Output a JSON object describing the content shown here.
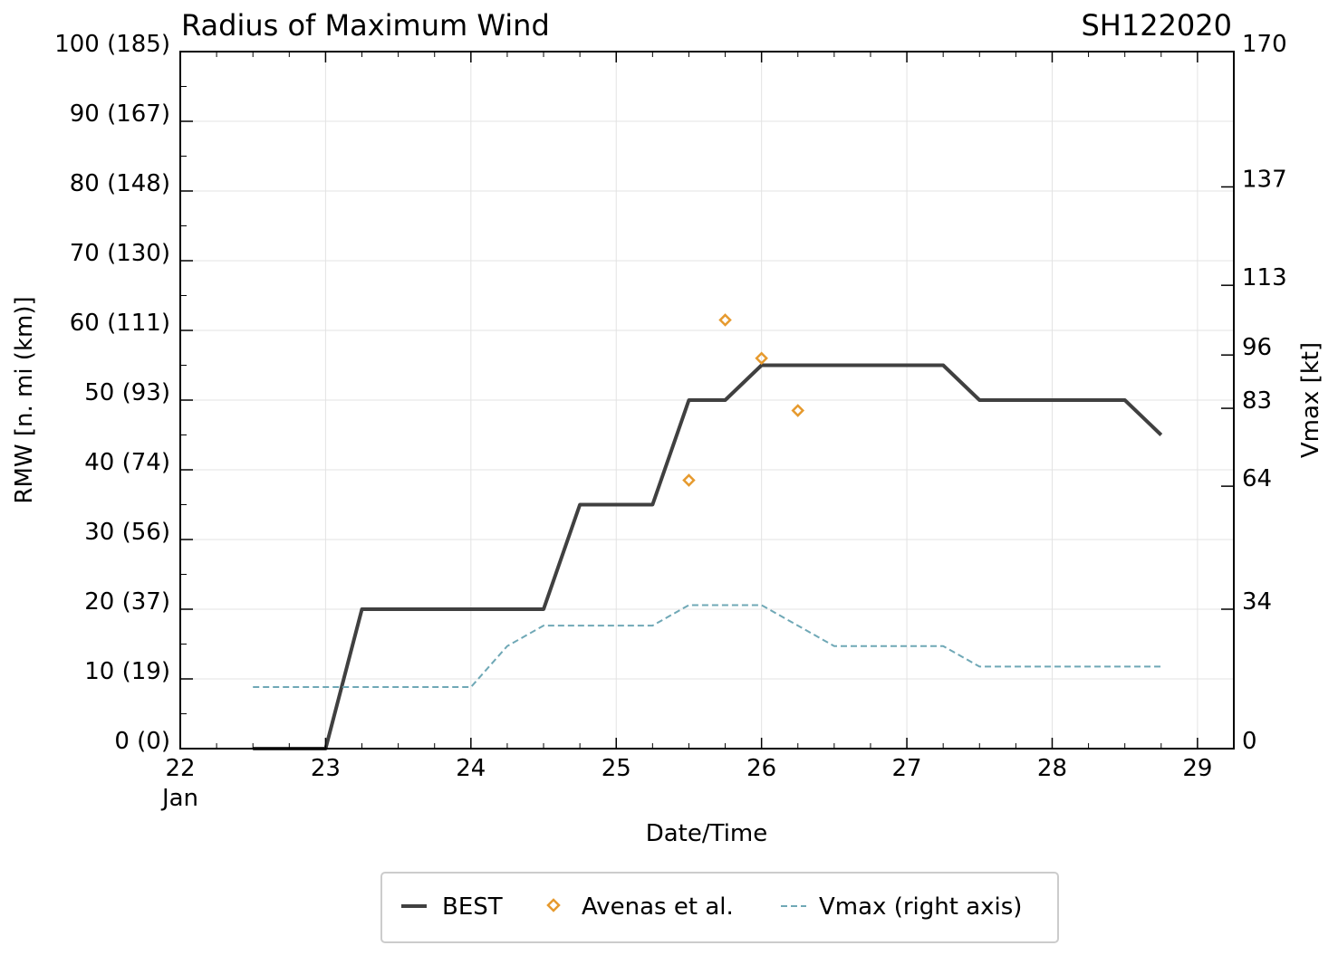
{
  "chart_data": {
    "type": "line",
    "title": "Radius of Maximum Wind",
    "storm_id": "SH122020",
    "xlabel": "Date/Time",
    "ylabel": "RMW [n. mi (km)]",
    "y2label": "Vmax [kt]",
    "xlim": [
      22,
      29.25
    ],
    "ylim": [
      0,
      100
    ],
    "x_ticks": [
      {
        "x": 22,
        "label": "22",
        "sub": "Jan"
      },
      {
        "x": 23,
        "label": "23",
        "sub": ""
      },
      {
        "x": 24,
        "label": "24",
        "sub": ""
      },
      {
        "x": 25,
        "label": "25",
        "sub": ""
      },
      {
        "x": 26,
        "label": "26",
        "sub": ""
      },
      {
        "x": 27,
        "label": "27",
        "sub": ""
      },
      {
        "x": 28,
        "label": "28",
        "sub": ""
      },
      {
        "x": 29,
        "label": "29",
        "sub": ""
      }
    ],
    "y_ticks": [
      {
        "y": 0,
        "label": "0 (0)"
      },
      {
        "y": 10,
        "label": "10 (19)"
      },
      {
        "y": 20,
        "label": "20 (37)"
      },
      {
        "y": 30,
        "label": "30 (56)"
      },
      {
        "y": 40,
        "label": "40 (74)"
      },
      {
        "y": 50,
        "label": "50 (93)"
      },
      {
        "y": 60,
        "label": "60 (111)"
      },
      {
        "y": 70,
        "label": "70 (130)"
      },
      {
        "y": 80,
        "label": "80 (148)"
      },
      {
        "y": 90,
        "label": "90 (167)"
      },
      {
        "y": 100,
        "label": "100 (185)"
      }
    ],
    "y2lim": [
      0,
      170
    ],
    "y2_ticks": [
      {
        "v": 0,
        "label": "0"
      },
      {
        "v": 34,
        "label": "34"
      },
      {
        "v": 64,
        "label": "64"
      },
      {
        "v": 83,
        "label": "83"
      },
      {
        "v": 96,
        "label": "96"
      },
      {
        "v": 113,
        "label": "113"
      },
      {
        "v": 137,
        "label": "137"
      },
      {
        "v": 170,
        "label": "170"
      }
    ],
    "series": [
      {
        "name": "BEST",
        "style": "solid",
        "color": "#404040",
        "x": [
          22.5,
          23.0,
          23.25,
          23.5,
          24.0,
          24.5,
          24.75,
          25.0,
          25.25,
          25.5,
          25.75,
          26.0,
          26.25,
          26.5,
          27.0,
          27.25,
          27.5,
          28.0,
          28.5,
          28.75
        ],
        "y": [
          0,
          0,
          20,
          20,
          20,
          20,
          35,
          35,
          35,
          50,
          50,
          55,
          55,
          55,
          55,
          55,
          50,
          50,
          50,
          45
        ]
      },
      {
        "name": "Avenas et al.",
        "style": "marker-diamond",
        "color": "#e69a2e",
        "x": [
          25.5,
          25.75,
          26.0,
          26.25
        ],
        "y": [
          38.5,
          61.5,
          56,
          48.5
        ]
      },
      {
        "name": "Vmax (right axis)",
        "style": "dashed",
        "color": "#6fa8b6",
        "axis": "right",
        "x": [
          22.5,
          23.0,
          23.5,
          24.0,
          24.25,
          24.5,
          25.0,
          25.25,
          25.5,
          26.0,
          26.5,
          27.0,
          27.25,
          27.5,
          28.0,
          28.5,
          28.75
        ],
        "y": [
          15,
          15,
          15,
          15,
          25,
          30,
          30,
          30,
          35,
          35,
          25,
          25,
          25,
          20,
          20,
          20,
          20
        ]
      }
    ],
    "legend": {
      "position": "bottom-center",
      "entries": [
        "BEST",
        "Avenas et al.",
        "Vmax (right axis)"
      ]
    },
    "grid": true
  }
}
